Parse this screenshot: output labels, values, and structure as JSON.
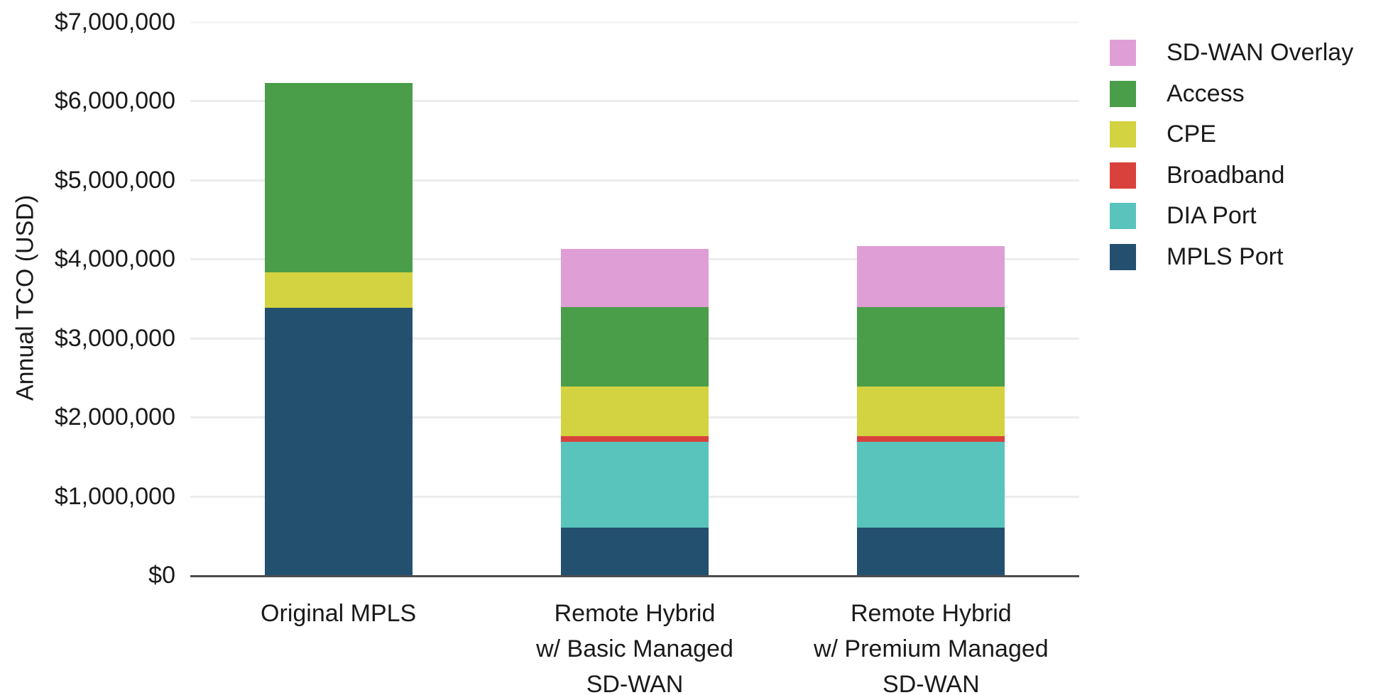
{
  "chart_data": {
    "type": "bar",
    "stacked": true,
    "title": "",
    "xlabel": "",
    "ylabel": "Annual TCO (USD)",
    "grid": "horizontal",
    "legend_position": "top-right",
    "categories": [
      {
        "id": "original-mpls",
        "lines": [
          "Original MPLS"
        ]
      },
      {
        "id": "remote-hybrid-basic",
        "lines": [
          "Remote Hybrid",
          "w/ Basic Managed",
          "SD-WAN"
        ]
      },
      {
        "id": "remote-hybrid-premium",
        "lines": [
          "Remote Hybrid",
          "w/ Premium Managed",
          "SD-WAN"
        ]
      }
    ],
    "series": [
      {
        "id": "mpls-port",
        "name": "MPLS Port",
        "color": "#23506f",
        "values": [
          3380000,
          600000,
          600000
        ]
      },
      {
        "id": "dia-port",
        "name": "DIA Port",
        "color": "#59c4bc",
        "values": [
          0,
          1090000,
          1090000
        ]
      },
      {
        "id": "broadband",
        "name": "Broadband",
        "color": "#d9423c",
        "values": [
          0,
          70000,
          70000
        ]
      },
      {
        "id": "cpe",
        "name": "CPE",
        "color": "#d3d240",
        "values": [
          455000,
          630000,
          630000
        ]
      },
      {
        "id": "access",
        "name": "Access",
        "color": "#4a9d49",
        "values": [
          2395000,
          1000000,
          1000000
        ]
      },
      {
        "id": "sd-wan-overlay",
        "name": "SD-WAN Overlay",
        "color": "#df9fd6",
        "values": [
          0,
          735000,
          770000
        ]
      }
    ],
    "totals": [
      6230000,
      4125000,
      4160000
    ],
    "legend": {
      "items": [
        "SD-WAN Overlay",
        "Access",
        "CPE",
        "Broadband",
        "DIA Port",
        "MPLS Port"
      ]
    },
    "y_axis": {
      "range": [
        0,
        7000000
      ],
      "ticks": [
        0,
        1000000,
        2000000,
        3000000,
        4000000,
        5000000,
        6000000,
        7000000
      ],
      "labels": [
        "$0",
        "$1,000,000",
        "$2,000,000",
        "$3,000,000",
        "$4,000,000",
        "$5,000,000",
        "$6,000,000",
        "$7,000,000"
      ]
    }
  },
  "colors": {
    "background": "#ffffff",
    "axis_line": "#4d4d4d",
    "gridline": "#ececec",
    "gridline_faint": "#f5f5f5",
    "text": "#1a1a1a"
  }
}
